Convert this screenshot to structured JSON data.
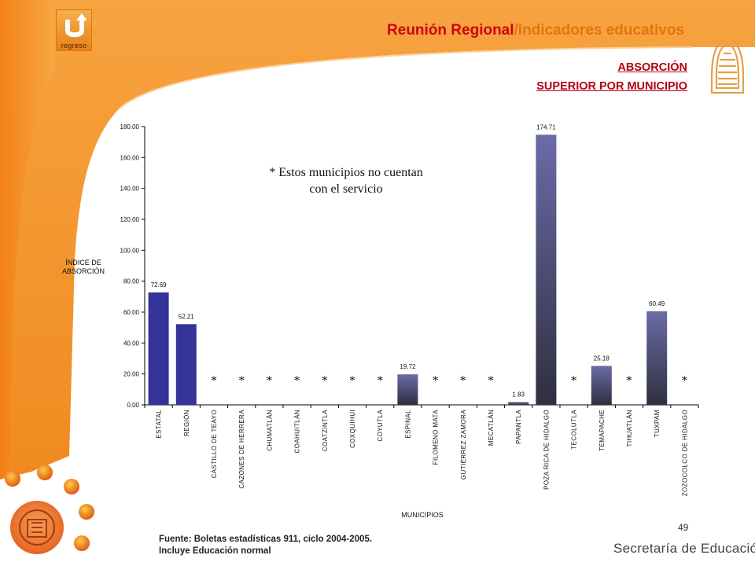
{
  "header": {
    "back_label": "regreso",
    "title_main": "Reunión Regional",
    "title_sub": "/Indicadores educativos",
    "subtitle_line1": "ABSORCIÓN",
    "subtitle_line2": "SUPERIOR POR MUNICIPIO"
  },
  "note": {
    "line1": "* Estos municipios no cuentan",
    "line2": "con el servicio"
  },
  "footer": {
    "source_line1": "Fuente:  Boletas estadísticas  911, ciclo 2004-2005.",
    "source_line2": "Incluye Educación normal",
    "page_number": "49",
    "organization": "Secretaría de Educación"
  },
  "colors": {
    "accent_red": "#d1000f",
    "accent_orange": "#f07d1a",
    "bar_blue": "#333399",
    "bar_slate_top": "#6b6ba8",
    "bar_slate_bottom": "#2f2f3f"
  },
  "chart_data": {
    "type": "bar",
    "ylabel_line1": "ÍNDICE DE",
    "ylabel_line2": "ABSORCIÓN",
    "xlabel": "MUNICIPIOS",
    "ylim": [
      0,
      180
    ],
    "yticks": [
      "0.00",
      "20.00",
      "40.00",
      "60.00",
      "80.00",
      "100.00",
      "120.00",
      "140.00",
      "160.00",
      "180.00"
    ],
    "grid": false,
    "legend": "none",
    "categories": [
      "ESTATAL",
      "REGIÓN",
      "CASTILLO DE TEAYO",
      "CAZONES DE HERRERA",
      "CHUMATLÁN",
      "COAHUITLÁN",
      "COATZINTLA",
      "COXQUIHUI",
      "COYUTLA",
      "ESPINAL",
      "FILOMENO MATA",
      "GUTIÉRREZ ZAMORA",
      "MECATLÁN",
      "PAPANTLA",
      "POZA RICA DE HIDALGO",
      "TECOLUTLA",
      "TEMAPACHE",
      "TIHUATLÁN",
      "TUXPAM",
      "ZOZOCOLCO DE HIDALGO"
    ],
    "values": [
      72.69,
      52.21,
      null,
      null,
      null,
      null,
      null,
      null,
      null,
      19.72,
      null,
      null,
      null,
      1.83,
      174.71,
      null,
      25.18,
      null,
      60.49,
      null
    ],
    "value_labels": [
      "72.69",
      "52.21",
      "",
      "",
      "",
      "",
      "",
      "",
      "",
      "19.72",
      "",
      "",
      "",
      "1.83",
      "174.71",
      "",
      "25.18",
      "",
      "60.49",
      ""
    ],
    "no_service_marker": "*"
  }
}
